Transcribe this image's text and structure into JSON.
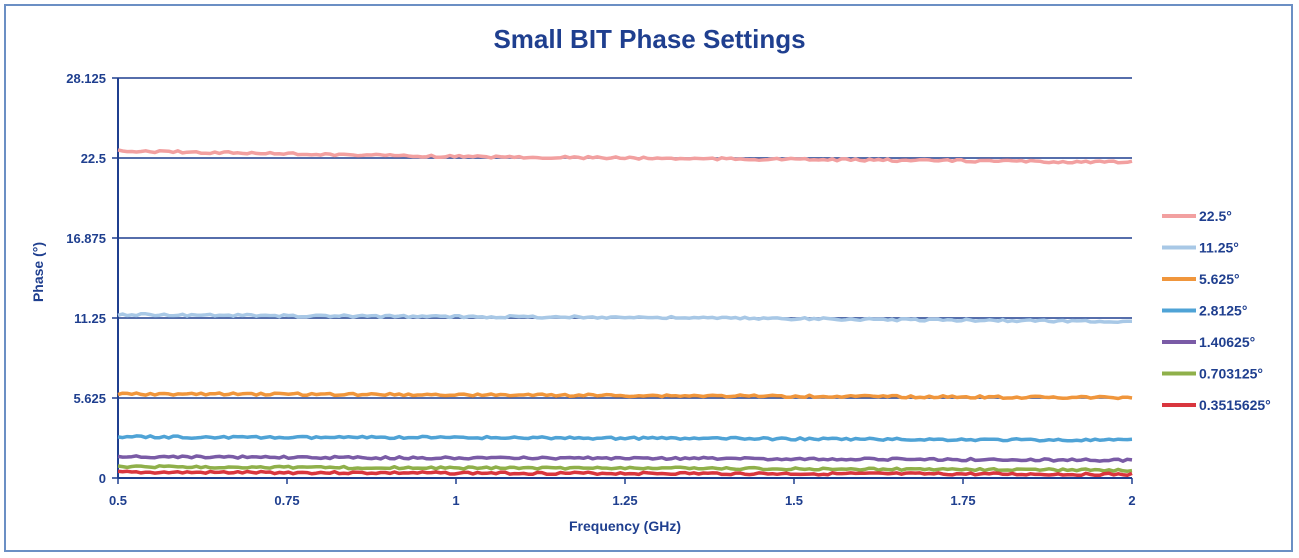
{
  "chart_data": {
    "type": "line",
    "title": "Small BIT Phase Settings",
    "xlabel": "Frequency (GHz)",
    "ylabel": "Phase (°)",
    "xlim": [
      0.5,
      2
    ],
    "ylim": [
      0,
      28.125
    ],
    "x_ticks": [
      "0.5",
      "0.75",
      "1",
      "1.25",
      "1.5",
      "1.75",
      "2"
    ],
    "y_ticks": [
      "0",
      "5.625",
      "11.25",
      "16.875",
      "22.5",
      "28.125"
    ],
    "grid": "horizontal",
    "legend_position": "right",
    "x": [
      0.5,
      0.75,
      1.0,
      1.25,
      1.5,
      1.75,
      2.0
    ],
    "series": [
      {
        "name": "22.5°",
        "color": "#f2a0a0",
        "values": [
          23.0,
          22.8,
          22.6,
          22.5,
          22.4,
          22.3,
          22.2
        ]
      },
      {
        "name": "11.25°",
        "color": "#a8c8e6",
        "values": [
          11.5,
          11.4,
          11.35,
          11.3,
          11.2,
          11.1,
          11.0
        ]
      },
      {
        "name": "5.625°",
        "color": "#f0963c",
        "values": [
          5.9,
          5.9,
          5.85,
          5.8,
          5.75,
          5.7,
          5.65
        ]
      },
      {
        "name": "2.8125°",
        "color": "#4fa3d6",
        "values": [
          2.9,
          2.85,
          2.85,
          2.8,
          2.75,
          2.7,
          2.65
        ]
      },
      {
        "name": "1.40625°",
        "color": "#7a5ba6",
        "values": [
          1.5,
          1.45,
          1.4,
          1.4,
          1.35,
          1.3,
          1.25
        ]
      },
      {
        "name": "0.703125°",
        "color": "#8fb04a",
        "values": [
          0.8,
          0.75,
          0.7,
          0.7,
          0.65,
          0.6,
          0.55
        ]
      },
      {
        "name": "0.3515625°",
        "color": "#d9363e",
        "values": [
          0.4,
          0.38,
          0.35,
          0.33,
          0.3,
          0.28,
          0.25
        ]
      }
    ]
  }
}
